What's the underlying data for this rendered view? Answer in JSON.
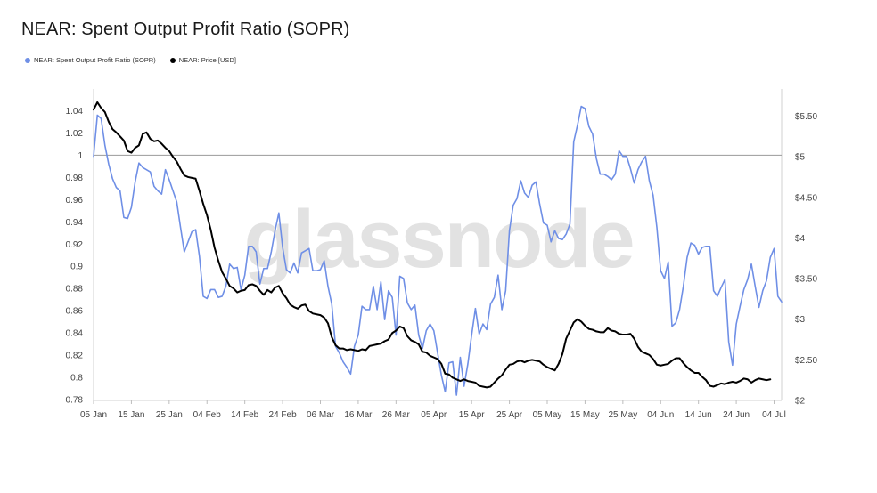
{
  "title": "NEAR: Spent Output Profit Ratio (SOPR)",
  "watermark": "glassnode",
  "legend": [
    {
      "label": "NEAR: Spent Output Profit Ratio (SOPR)",
      "color": "#6f8fe6"
    },
    {
      "label": "NEAR: Price [USD]",
      "color": "#000000"
    }
  ],
  "chart_data": {
    "type": "line",
    "x_ticks": [
      "05 Jan",
      "15 Jan",
      "25 Jan",
      "04 Feb",
      "14 Feb",
      "24 Feb",
      "06 Mar",
      "16 Mar",
      "26 Mar",
      "05 Apr",
      "15 Apr",
      "25 Apr",
      "05 May",
      "15 May",
      "25 May",
      "04 Jun",
      "14 Jun",
      "24 Jun",
      "04 Jul"
    ],
    "y_left": {
      "ticks": [
        "0.78",
        "0.8",
        "0.82",
        "0.84",
        "0.86",
        "0.88",
        "0.9",
        "0.92",
        "0.94",
        "0.96",
        "0.98",
        "1",
        "1.02",
        "1.04"
      ],
      "range": [
        0.78,
        1.04
      ]
    },
    "y_right": {
      "ticks": [
        "$2",
        "$2.50",
        "$3",
        "$3.50",
        "$4",
        "$4.50",
        "$5",
        "$5.50"
      ],
      "range": [
        2,
        5.5
      ]
    },
    "reference_line": 1,
    "grid": false,
    "legend_position": "top-left",
    "series": [
      {
        "name": "NEAR: Spent Output Profit Ratio (SOPR)",
        "axis": "left",
        "color": "#6f8fe6",
        "values": [
          0.999,
          1.036,
          1.033,
          1.009,
          0.992,
          0.979,
          0.971,
          0.968,
          0.944,
          0.943,
          0.953,
          0.976,
          0.993,
          0.989,
          0.987,
          0.985,
          0.972,
          0.968,
          0.965,
          0.987,
          0.978,
          0.968,
          0.958,
          0.935,
          0.913,
          0.922,
          0.931,
          0.933,
          0.909,
          0.873,
          0.871,
          0.879,
          0.879,
          0.872,
          0.873,
          0.882,
          0.902,
          0.898,
          0.899,
          0.879,
          0.892,
          0.918,
          0.918,
          0.913,
          0.884,
          0.898,
          0.898,
          0.913,
          0.932,
          0.948,
          0.917,
          0.897,
          0.894,
          0.903,
          0.894,
          0.912,
          0.914,
          0.916,
          0.896,
          0.896,
          0.897,
          0.905,
          0.882,
          0.866,
          0.828,
          0.822,
          0.814,
          0.809,
          0.803,
          0.828,
          0.838,
          0.864,
          0.861,
          0.861,
          0.882,
          0.861,
          0.886,
          0.852,
          0.878,
          0.872,
          0.838,
          0.891,
          0.889,
          0.867,
          0.861,
          0.865,
          0.838,
          0.826,
          0.842,
          0.848,
          0.842,
          0.822,
          0.802,
          0.787,
          0.813,
          0.814,
          0.784,
          0.818,
          0.792,
          0.812,
          0.838,
          0.862,
          0.839,
          0.848,
          0.843,
          0.866,
          0.872,
          0.892,
          0.861,
          0.878,
          0.932,
          0.955,
          0.961,
          0.977,
          0.966,
          0.962,
          0.973,
          0.976,
          0.956,
          0.939,
          0.937,
          0.922,
          0.932,
          0.925,
          0.924,
          0.929,
          0.938,
          1.012,
          1.027,
          1.044,
          1.042,
          1.026,
          1.019,
          0.997,
          0.983,
          0.983,
          0.981,
          0.978,
          0.983,
          1.004,
          0.999,
          0.999,
          0.988,
          0.975,
          0.987,
          0.994,
          0.999,
          0.977,
          0.964,
          0.935,
          0.896,
          0.889,
          0.904,
          0.846,
          0.849,
          0.861,
          0.882,
          0.908,
          0.921,
          0.919,
          0.911,
          0.917,
          0.918,
          0.918,
          0.878,
          0.873,
          0.881,
          0.888,
          0.832,
          0.811,
          0.848,
          0.864,
          0.879,
          0.888,
          0.902,
          0.882,
          0.863,
          0.878,
          0.887,
          0.908,
          0.916,
          0.873,
          0.868
        ],
        "x_start": "05 Jan",
        "x_end": "08 Jul",
        "step": "1 day"
      },
      {
        "name": "NEAR: Price [USD]",
        "axis": "right",
        "color": "#000000",
        "values": [
          5.58,
          5.67,
          5.6,
          5.55,
          5.43,
          5.34,
          5.3,
          5.25,
          5.2,
          5.07,
          5.05,
          5.11,
          5.14,
          5.28,
          5.3,
          5.22,
          5.19,
          5.2,
          5.16,
          5.11,
          5.07,
          5.0,
          4.94,
          4.85,
          4.77,
          4.75,
          4.74,
          4.73,
          4.58,
          4.42,
          4.28,
          4.1,
          3.88,
          3.72,
          3.58,
          3.5,
          3.41,
          3.38,
          3.33,
          3.35,
          3.36,
          3.42,
          3.43,
          3.41,
          3.35,
          3.3,
          3.36,
          3.33,
          3.39,
          3.41,
          3.32,
          3.26,
          3.18,
          3.15,
          3.13,
          3.17,
          3.18,
          3.1,
          3.07,
          3.06,
          3.05,
          3.02,
          2.95,
          2.78,
          2.68,
          2.64,
          2.64,
          2.62,
          2.63,
          2.62,
          2.61,
          2.63,
          2.62,
          2.67,
          2.68,
          2.69,
          2.7,
          2.73,
          2.75,
          2.83,
          2.86,
          2.91,
          2.89,
          2.79,
          2.74,
          2.72,
          2.69,
          2.6,
          2.59,
          2.55,
          2.53,
          2.51,
          2.45,
          2.33,
          2.32,
          2.28,
          2.26,
          2.24,
          2.26,
          2.24,
          2.23,
          2.22,
          2.18,
          2.17,
          2.16,
          2.17,
          2.22,
          2.27,
          2.31,
          2.38,
          2.44,
          2.45,
          2.48,
          2.49,
          2.47,
          2.49,
          2.5,
          2.49,
          2.48,
          2.44,
          2.41,
          2.39,
          2.37,
          2.45,
          2.57,
          2.76,
          2.86,
          2.96,
          3.0,
          2.97,
          2.92,
          2.88,
          2.87,
          2.85,
          2.84,
          2.84,
          2.89,
          2.86,
          2.85,
          2.82,
          2.81,
          2.81,
          2.82,
          2.76,
          2.66,
          2.6,
          2.58,
          2.56,
          2.51,
          2.44,
          2.43,
          2.44,
          2.45,
          2.49,
          2.52,
          2.52,
          2.46,
          2.41,
          2.37,
          2.34,
          2.34,
          2.29,
          2.25,
          2.18,
          2.17,
          2.19,
          2.21,
          2.2,
          2.22,
          2.23,
          2.22,
          2.24,
          2.27,
          2.26,
          2.22,
          2.25,
          2.27,
          2.26,
          2.25,
          2.26
        ]
      }
    ]
  }
}
